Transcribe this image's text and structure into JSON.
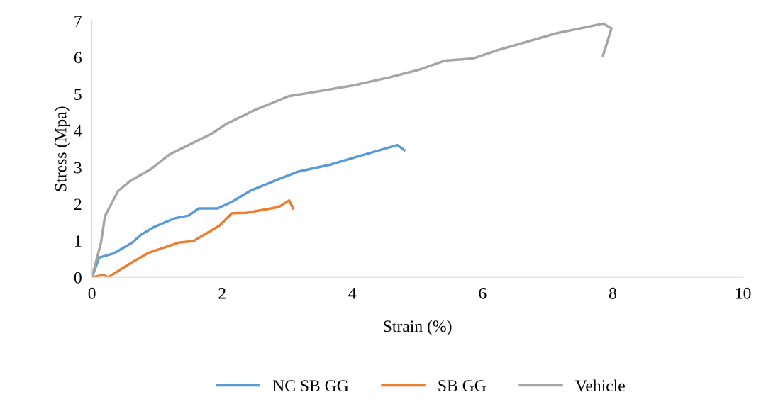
{
  "chart_data": {
    "type": "line",
    "xlabel": "Strain (%)",
    "ylabel": "Stress (Mpa)",
    "xlim": [
      0,
      10
    ],
    "ylim": [
      0,
      7
    ],
    "xticks": [
      0,
      2,
      4,
      6,
      8,
      10
    ],
    "yticks": [
      0,
      1,
      2,
      3,
      4,
      5,
      6,
      7
    ],
    "grid": false,
    "legend": "bottom",
    "marker": "none",
    "line_style": "solid",
    "series": [
      {
        "name": "NC SB GG",
        "color": "#5b9bd5",
        "x": [
          0,
          0.11,
          0.33,
          0.62,
          0.76,
          0.95,
          1.27,
          1.49,
          1.64,
          1.93,
          2.15,
          2.43,
          2.87,
          3.16,
          3.67,
          4.03,
          4.69,
          4.8
        ],
        "values": [
          0,
          0.54,
          0.65,
          0.95,
          1.17,
          1.37,
          1.61,
          1.69,
          1.88,
          1.88,
          2.06,
          2.36,
          2.68,
          2.88,
          3.08,
          3.27,
          3.61,
          3.47
        ]
      },
      {
        "name": "SB GG",
        "color": "#ed7d31",
        "x": [
          0,
          0.18,
          0.25,
          0.55,
          0.87,
          1.34,
          1.56,
          1.96,
          2.15,
          2.37,
          2.87,
          3.03,
          3.09
        ],
        "values": [
          0,
          0.07,
          0,
          0.34,
          0.67,
          0.95,
          0.99,
          1.41,
          1.75,
          1.76,
          1.92,
          2.1,
          1.88
        ]
      },
      {
        "name": "Vehicle",
        "color": "#a5a5a5",
        "x": [
          0,
          0.14,
          0.2,
          0.4,
          0.58,
          0.91,
          1.2,
          1.85,
          2.07,
          2.51,
          3.02,
          3.3,
          4.03,
          4.58,
          5.0,
          5.42,
          5.86,
          6.22,
          7.12,
          7.85,
          7.98,
          7.85
        ],
        "values": [
          0,
          0.95,
          1.67,
          2.35,
          2.62,
          2.96,
          3.36,
          3.93,
          4.19,
          4.57,
          4.94,
          5.02,
          5.24,
          5.46,
          5.65,
          5.91,
          5.97,
          6.19,
          6.65,
          6.92,
          6.79,
          6.05
        ]
      }
    ]
  }
}
